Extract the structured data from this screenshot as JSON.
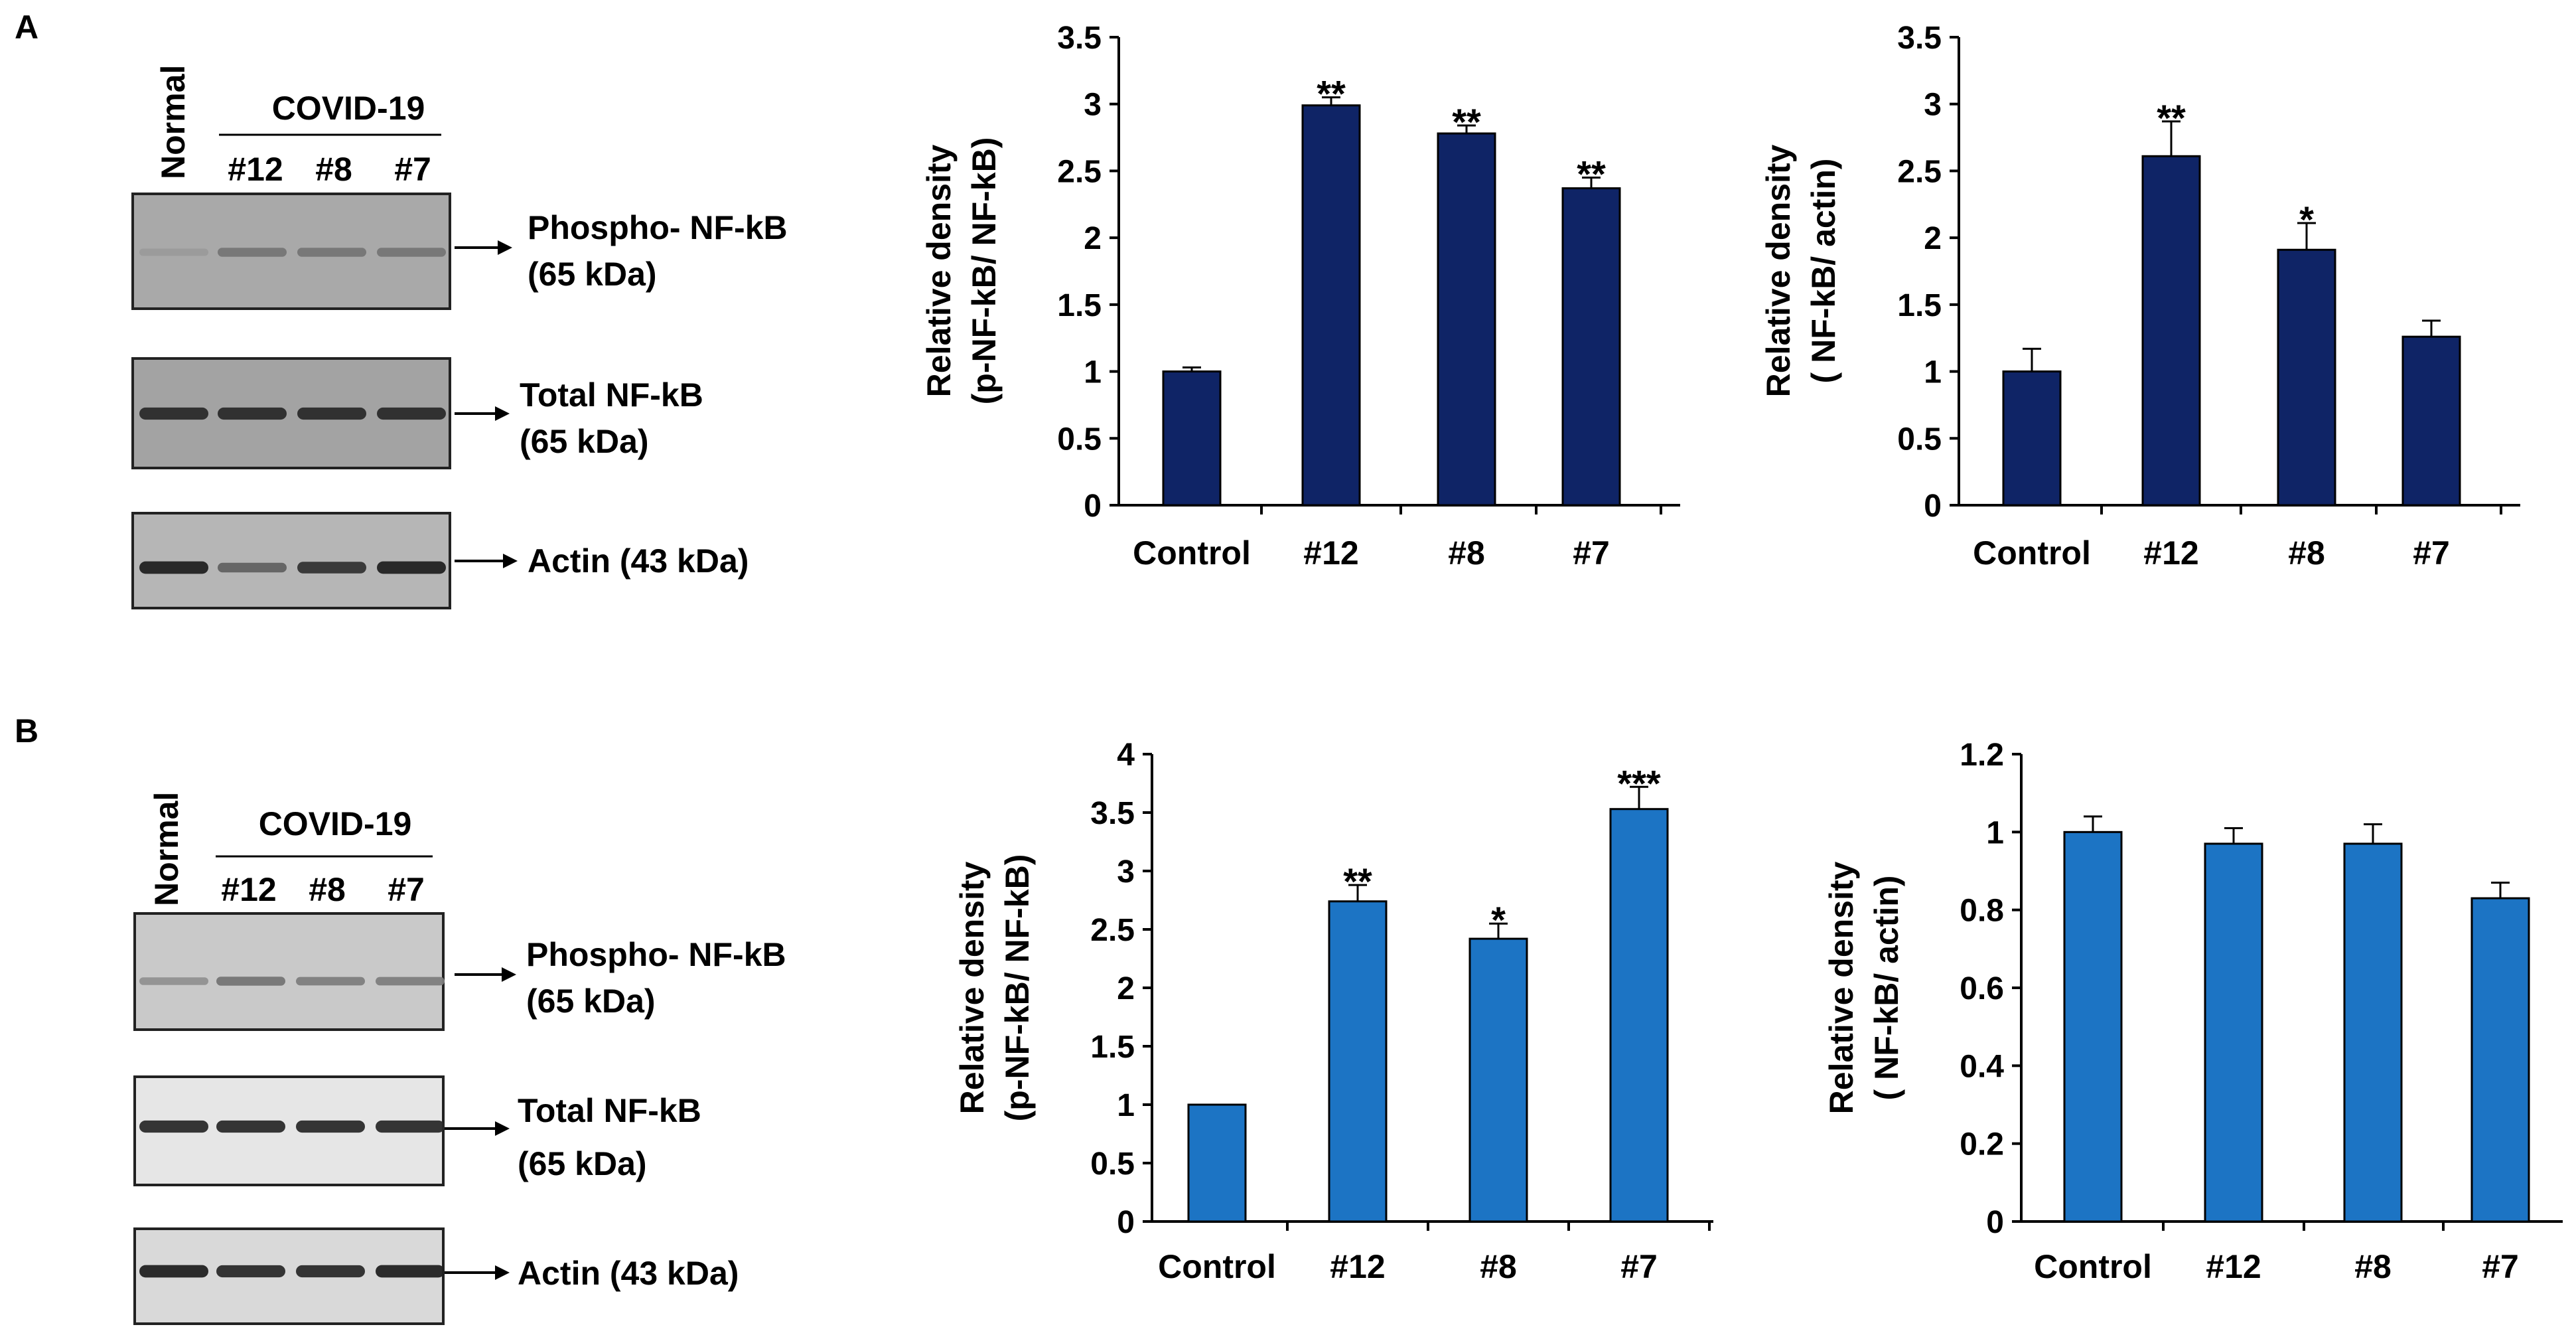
{
  "panels": [
    {
      "letter": "A",
      "blot": {
        "normal_label": "Normal",
        "group_label": "COVID-19",
        "lane_labels": [
          "#12",
          "#8",
          "#7"
        ],
        "bands": [
          {
            "label_line1": "Phospho- NF-kB",
            "label_line2": "(65 kDa)",
            "intensity": [
              0.25,
              0.45,
              0.45,
              0.45
            ]
          },
          {
            "label_line1": "Total NF-kB",
            "label_line2": "(65 kDa)",
            "intensity": [
              0.85,
              0.85,
              0.85,
              0.85
            ]
          },
          {
            "label_line1": "Actin (43 kDa)",
            "label_line2": "",
            "intensity": [
              0.9,
              0.55,
              0.8,
              0.9
            ]
          }
        ]
      }
    },
    {
      "letter": "B",
      "blot": {
        "normal_label": "Normal",
        "group_label": "COVID-19",
        "lane_labels": [
          "#12",
          "#8",
          "#7"
        ],
        "bands": [
          {
            "label_line1": "Phospho- NF-kB",
            "label_line2": "(65 kDa)",
            "intensity": [
              0.3,
              0.45,
              0.4,
              0.4
            ]
          },
          {
            "label_line1": "Total NF-kB",
            "label_line2": "(65 kDa)",
            "intensity": [
              0.85,
              0.85,
              0.85,
              0.85
            ]
          },
          {
            "label_line1": "Actin (43 kDa)",
            "label_line2": "",
            "intensity": [
              0.9,
              0.85,
              0.85,
              0.9
            ]
          }
        ]
      }
    }
  ],
  "chart_data": [
    {
      "id": "A1",
      "type": "bar",
      "color": "#0f2466",
      "ylabel_line1": "Relative density",
      "ylabel_line2": "(p-NF-kB/ NF-kB)",
      "categories": [
        "Control",
        "#12",
        "#8",
        "#7"
      ],
      "values": [
        1.0,
        2.99,
        2.78,
        2.37
      ],
      "errors": [
        0.03,
        0.06,
        0.06,
        0.08
      ],
      "significance": [
        "",
        "**",
        "**",
        "**"
      ],
      "ylim": [
        0,
        3.5
      ],
      "yticks": [
        "0",
        "0.5",
        "1",
        "1.5",
        "2",
        "2.5",
        "3",
        "3.5"
      ]
    },
    {
      "id": "A2",
      "type": "bar",
      "color": "#0f2466",
      "ylabel_line1": "Relative density",
      "ylabel_line2": "( NF-kB/ actin)",
      "categories": [
        "Control",
        "#12",
        "#8",
        "#7"
      ],
      "values": [
        1.0,
        2.61,
        1.91,
        1.26
      ],
      "errors": [
        0.17,
        0.26,
        0.2,
        0.12
      ],
      "significance": [
        "",
        "**",
        "*",
        ""
      ],
      "ylim": [
        0,
        3.5
      ],
      "yticks": [
        "0",
        "0.5",
        "1",
        "1.5",
        "2",
        "2.5",
        "3",
        "3.5"
      ]
    },
    {
      "id": "B1",
      "type": "bar",
      "color": "#1c74c4",
      "ylabel_line1": "Relative density",
      "ylabel_line2": "(p-NF-kB/ NF-kB)",
      "categories": [
        "Control",
        "#12",
        "#8",
        "#7"
      ],
      "values": [
        1.0,
        2.74,
        2.42,
        3.53
      ],
      "errors": [
        0.0,
        0.14,
        0.13,
        0.19
      ],
      "significance": [
        "",
        "**",
        "*",
        "***"
      ],
      "ylim": [
        0,
        4
      ],
      "yticks": [
        "0",
        "0.5",
        "1",
        "1.5",
        "2",
        "2.5",
        "3",
        "3.5",
        "4"
      ]
    },
    {
      "id": "B2",
      "type": "bar",
      "color": "#1c74c4",
      "ylabel_line1": "Relative density",
      "ylabel_line2": "( NF-kB/ actin)",
      "categories": [
        "Control",
        "#12",
        "#8",
        "#7"
      ],
      "values": [
        1.0,
        0.97,
        0.97,
        0.83
      ],
      "errors": [
        0.04,
        0.04,
        0.05,
        0.04
      ],
      "significance": [
        "",
        "",
        "",
        ""
      ],
      "ylim": [
        0,
        1.2
      ],
      "yticks": [
        "0",
        "0.2",
        "0.4",
        "0.6",
        "0.8",
        "1",
        "1.2"
      ]
    }
  ]
}
